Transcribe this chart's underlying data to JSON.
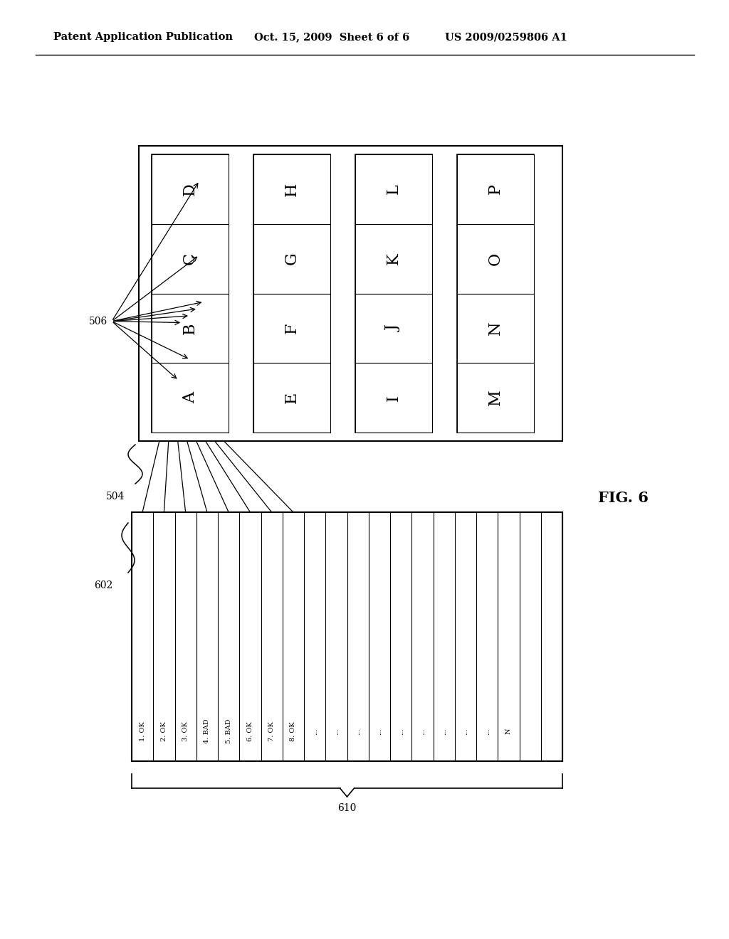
{
  "header_left": "Patent Application Publication",
  "header_mid": "Oct. 15, 2009  Sheet 6 of 6",
  "header_right": "US 2009/0259806 A1",
  "fig_label": "FIG. 6",
  "label_504": "504",
  "label_506": "506",
  "label_602": "602",
  "label_610": "610",
  "col1_labels_top_to_bot": [
    "D",
    "C",
    "B",
    "A"
  ],
  "col2_labels_top_to_bot": [
    "H",
    "G",
    "F",
    "E"
  ],
  "col3_labels_top_to_bot": [
    "L",
    "K",
    "J",
    "I"
  ],
  "col4_labels_top_to_bot": [
    "P",
    "O",
    "N",
    "M"
  ],
  "bottom_labels": [
    "1. OK",
    "2. OK",
    "3. OK",
    "4. BAD",
    "5. BAD",
    "6. OK",
    "7. OK",
    "8. OK",
    "...",
    "...",
    "...",
    "...",
    "...",
    "...",
    "...",
    "...",
    "...",
    "N"
  ]
}
